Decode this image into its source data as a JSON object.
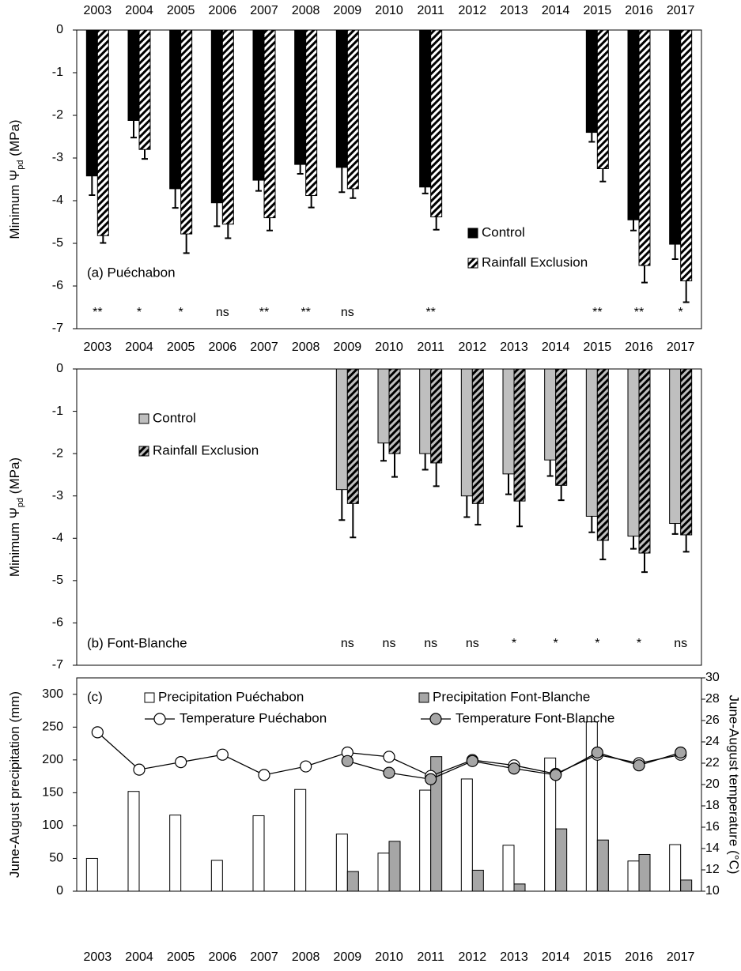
{
  "chart_data": [
    {
      "type": "bar",
      "annotation": "(a) Puéchabon",
      "ylabel": {
        "text": "Minimum Ψ",
        "sub": "pd",
        "tail": " (MPa)"
      },
      "categories": [
        "2003",
        "2004",
        "2005",
        "2006",
        "2007",
        "2008",
        "2009",
        "2010",
        "2011",
        "2012",
        "2013",
        "2014",
        "2015",
        "2016",
        "2017"
      ],
      "ylim": [
        -7,
        0
      ],
      "yticks": [
        0,
        -1,
        -2,
        -3,
        -4,
        -5,
        -6,
        -7
      ],
      "series": [
        {
          "name": "Control",
          "color": "#000000",
          "hatch": false,
          "values": [
            -3.42,
            -2.12,
            -3.72,
            -4.05,
            -3.52,
            -3.15,
            -3.22,
            null,
            -3.68,
            null,
            null,
            null,
            -2.4,
            -4.45,
            -5.02
          ],
          "errors": [
            0.45,
            0.4,
            0.45,
            0.55,
            0.25,
            0.22,
            0.58,
            null,
            0.15,
            null,
            null,
            null,
            0.22,
            0.25,
            0.35
          ]
        },
        {
          "name": "Rainfall Exclusion",
          "color": "#ffffff",
          "hatch": true,
          "values": [
            -4.82,
            -2.8,
            -4.78,
            -4.55,
            -4.4,
            -3.88,
            -3.72,
            null,
            -4.38,
            null,
            null,
            null,
            -3.25,
            -5.52,
            -5.88
          ],
          "errors": [
            0.17,
            0.22,
            0.45,
            0.33,
            0.3,
            0.28,
            0.22,
            null,
            0.3,
            null,
            null,
            null,
            0.3,
            0.4,
            0.5
          ]
        }
      ],
      "significance": [
        "**",
        "*",
        "*",
        "ns",
        "**",
        "**",
        "ns",
        null,
        "**",
        null,
        null,
        null,
        "**",
        "**",
        "*"
      ]
    },
    {
      "type": "bar",
      "annotation": "(b) Font-Blanche",
      "ylabel": {
        "text": "Minimum Ψ",
        "sub": "pd",
        "tail": " (MPa)"
      },
      "categories": [
        "2003",
        "2004",
        "2005",
        "2006",
        "2007",
        "2008",
        "2009",
        "2010",
        "2011",
        "2012",
        "2013",
        "2014",
        "2015",
        "2016",
        "2017"
      ],
      "ylim": [
        -7,
        0
      ],
      "yticks": [
        0,
        -1,
        -2,
        -3,
        -4,
        -5,
        -6,
        -7
      ],
      "series": [
        {
          "name": "Control",
          "color": "#bfbfbf",
          "hatch": false,
          "values": [
            null,
            null,
            null,
            null,
            null,
            null,
            -2.85,
            -1.75,
            -2.0,
            -3.0,
            -2.48,
            -2.15,
            -3.48,
            -3.95,
            -3.65
          ],
          "errors": [
            null,
            null,
            null,
            null,
            null,
            null,
            0.72,
            0.42,
            0.38,
            0.5,
            0.48,
            0.38,
            0.38,
            0.3,
            0.25
          ]
        },
        {
          "name": "Rainfall Exclusion",
          "color": "#bfbfbf",
          "hatch": true,
          "values": [
            null,
            null,
            null,
            null,
            null,
            null,
            -3.18,
            -2.0,
            -2.22,
            -3.18,
            -3.12,
            -2.75,
            -4.05,
            -4.35,
            -3.92
          ],
          "errors": [
            null,
            null,
            null,
            null,
            null,
            null,
            0.8,
            0.55,
            0.55,
            0.5,
            0.6,
            0.35,
            0.45,
            0.45,
            0.4
          ]
        }
      ],
      "significance": [
        null,
        null,
        null,
        null,
        null,
        null,
        "ns",
        "ns",
        "ns",
        "ns",
        "*",
        "*",
        "*",
        "*",
        "ns"
      ]
    },
    {
      "type": "combo",
      "annotation": "(c)",
      "ylabel": {
        "text": "June-August precipitation (mm)"
      },
      "y2label": "June-August temperature (°C)",
      "categories": [
        "2003",
        "2004",
        "2005",
        "2006",
        "2007",
        "2008",
        "2009",
        "2010",
        "2011",
        "2012",
        "2013",
        "2014",
        "2015",
        "2016",
        "2017"
      ],
      "ylim": [
        0,
        325
      ],
      "yticks": [
        0,
        50,
        100,
        150,
        200,
        250,
        300
      ],
      "y2lim": [
        10,
        30
      ],
      "y2ticks": [
        10,
        12,
        14,
        16,
        18,
        20,
        22,
        24,
        26,
        28,
        30
      ],
      "series": [
        {
          "name": "Precipitation Puéchabon",
          "kind": "bar",
          "color": "#ffffff",
          "values": [
            50,
            152,
            116,
            47,
            115,
            155,
            87,
            58,
            154,
            171,
            70,
            203,
            258,
            46,
            71
          ]
        },
        {
          "name": "Precipitation Font-Blanche",
          "kind": "bar",
          "color": "#a6a6a6",
          "values": [
            null,
            null,
            null,
            null,
            null,
            null,
            30,
            76,
            205,
            32,
            11,
            95,
            78,
            56,
            17
          ]
        },
        {
          "name": "Temperature Puéchabon",
          "kind": "line",
          "axis": "y2",
          "color": "#ffffff",
          "values": [
            24.9,
            21.4,
            22.1,
            22.8,
            20.9,
            21.7,
            23.0,
            22.6,
            20.8,
            22.3,
            21.8,
            21.0,
            22.8,
            22.0,
            22.8
          ]
        },
        {
          "name": "Temperature Font-Blanche",
          "kind": "line",
          "axis": "y2",
          "color": "#a6a6a6",
          "values": [
            null,
            null,
            null,
            null,
            null,
            null,
            22.2,
            21.1,
            20.5,
            22.2,
            21.5,
            20.9,
            23.0,
            21.8,
            23.0
          ]
        }
      ]
    }
  ]
}
